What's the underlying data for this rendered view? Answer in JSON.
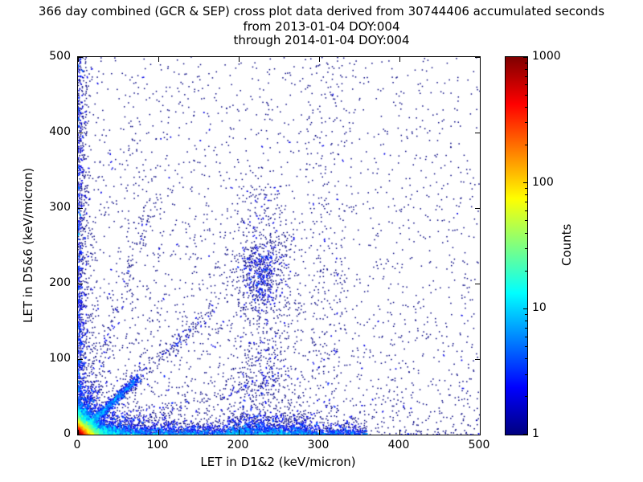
{
  "chart_data": {
    "type": "scatter",
    "title": "366 day combined (GCR & SEP) cross plot data derived from 30744406 accumulated seconds",
    "subtitle_lines": [
      "from 2013-01-04 DOY:004",
      "through 2014-01-04 DOY:004"
    ],
    "accumulated_seconds": 30744406,
    "date_range": {
      "from": "2013-01-04 DOY:004",
      "through": "2014-01-04 DOY:004"
    },
    "xlabel": "LET in D1&2 (keV/micron)",
    "ylabel": "LET in D5&6 (keV/micron)",
    "xlim": [
      0,
      500
    ],
    "ylim": [
      0,
      500
    ],
    "xticks": [
      0,
      100,
      200,
      300,
      400,
      500
    ],
    "yticks": [
      0,
      100,
      200,
      300,
      400,
      500
    ],
    "grid": false,
    "colorbar": {
      "label": "Counts",
      "scale": "log",
      "min": 1,
      "max": 1000,
      "ticks": [
        1,
        10,
        100,
        1000
      ],
      "colormap": "jet",
      "stops": [
        {
          "pos": 0.0,
          "color": "#00007f"
        },
        {
          "pos": 0.125,
          "color": "#0000ff"
        },
        {
          "pos": 0.375,
          "color": "#00ffff"
        },
        {
          "pos": 0.625,
          "color": "#ffff00"
        },
        {
          "pos": 0.875,
          "color": "#ff0000"
        },
        {
          "pos": 1.0,
          "color": "#7f0000"
        }
      ]
    },
    "density_features": [
      {
        "name": "origin-core",
        "type": "exp",
        "n": 9000,
        "sx": 5,
        "sy": 5
      },
      {
        "name": "origin-halo",
        "type": "exp",
        "n": 2600,
        "sx": 16,
        "sy": 14
      },
      {
        "name": "bottom-band",
        "type": "band",
        "n": 3600,
        "xmin": 0,
        "xmax": 360,
        "xpow": 1.6,
        "sy": 6
      },
      {
        "name": "bottom-band-mid",
        "type": "band",
        "n": 650,
        "xmin": 185,
        "xmax": 285,
        "xpow": 1.0,
        "sy": 9
      },
      {
        "name": "left-column",
        "type": "vband",
        "n": 1500,
        "sx": 5,
        "ymax": 500,
        "ypow": 2.0
      },
      {
        "name": "diagonal-streak",
        "type": "ray",
        "n": 900,
        "dx": 1,
        "dy": 1,
        "len": 75,
        "jitter": 2.5,
        "tpow": 1.2
      },
      {
        "name": "diagonal-extension",
        "type": "ray",
        "n": 350,
        "dx": 1,
        "dy": 1,
        "len": 170,
        "jitter": 5,
        "tpow": 1.5
      },
      {
        "name": "steep-ray",
        "type": "ray",
        "n": 300,
        "dx": 0.3,
        "dy": 1,
        "len": 320,
        "jitter": 5,
        "tpow": 1.8
      },
      {
        "name": "shallow-ray",
        "type": "ray",
        "n": 280,
        "dx": 1,
        "dy": 0.3,
        "len": 260,
        "jitter": 5,
        "tpow": 1.8
      },
      {
        "name": "mid-cluster",
        "type": "gauss",
        "n": 500,
        "cx": 228,
        "cy": 213,
        "sx": 14,
        "sy": 24
      },
      {
        "name": "mid-column",
        "type": "column",
        "n": 850,
        "cx": 230,
        "sx": 22,
        "ymax": 330,
        "ypow": 1.4
      },
      {
        "name": "right-column",
        "type": "column",
        "n": 220,
        "cx": 310,
        "sx": 16,
        "ymax": 500,
        "ypow": 1.0
      },
      {
        "name": "background-low",
        "type": "bg",
        "n": 2200,
        "xpow": 1.15,
        "ypow": 1.7
      },
      {
        "name": "background-wide",
        "type": "bg",
        "n": 700,
        "xpow": 1.4,
        "ypow": 1.0
      }
    ]
  }
}
